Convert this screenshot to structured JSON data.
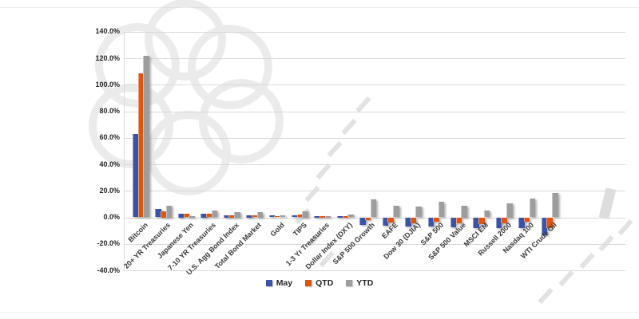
{
  "chart_data": {
    "type": "bar",
    "title": "",
    "xlabel": "",
    "ylabel": "",
    "categories": [
      "Bitcoin",
      "20+ YR Treasuries",
      "Japanese Yen",
      "7-10 YR Treasuries",
      "U.S. Agg Bond Index",
      "Total Bond Market",
      "Gold",
      "TIPS",
      "1-3 Yr Treasuries",
      "Dollar Index (DXY)",
      "S&P 500 Growth",
      "EAFE",
      "Dow 30 (DJIA)",
      "S&P 500",
      "S&P 500 Value",
      "MSCI EM",
      "Russell 2000",
      "Nasdaq 100",
      "WTI Crude Oil"
    ],
    "series": [
      {
        "name": "May",
        "color": "#3853A8",
        "values": [
          63.0,
          6.5,
          3.0,
          3.0,
          1.8,
          1.8,
          1.7,
          1.6,
          0.6,
          0.3,
          -5.5,
          -6.0,
          -6.7,
          -6.5,
          -7.0,
          -8.0,
          -7.5,
          -7.5,
          -13.0
        ]
      },
      {
        "name": "QTD",
        "color": "#E2540C",
        "values": [
          108.5,
          4.5,
          2.5,
          2.5,
          1.8,
          1.7,
          1.0,
          2.0,
          0.6,
          0.4,
          -1.5,
          -3.5,
          -4.0,
          -3.0,
          -4.0,
          -4.5,
          -4.0,
          -3.0,
          -8.0
        ]
      },
      {
        "name": "YTD",
        "color": "#9D9D9D",
        "values": [
          122.0,
          9.0,
          1.2,
          5.0,
          4.2,
          4.2,
          1.7,
          4.5,
          1.2,
          2.2,
          13.5,
          8.5,
          8.0,
          11.5,
          9.0,
          5.0,
          10.5,
          14.0,
          18.5
        ]
      }
    ],
    "ylim": [
      -40,
      140
    ],
    "ytick_step": 20,
    "y_ticks": [
      140,
      120,
      100,
      80,
      60,
      40,
      20,
      0,
      -20,
      -40
    ],
    "y_tick_labels": [
      "140.0%",
      "120.0%",
      "100.0%",
      "80.0%",
      "60.0%",
      "40.0%",
      "20.0%",
      "0.0%",
      "-20.0%",
      "-40.0%"
    ],
    "grid": true,
    "legend_position": "bottom-center",
    "legend": [
      "May",
      "QTD",
      "YTD"
    ]
  },
  "colors": {
    "background": "#ffffff",
    "gridline": "#d9d9d9",
    "tick_text": "#262626",
    "category_text": "#383838",
    "series_may": "#3853A8",
    "series_qtd": "#E2540C",
    "series_ytd": "#9D9D9D",
    "watermark": "#c9c9c9"
  }
}
